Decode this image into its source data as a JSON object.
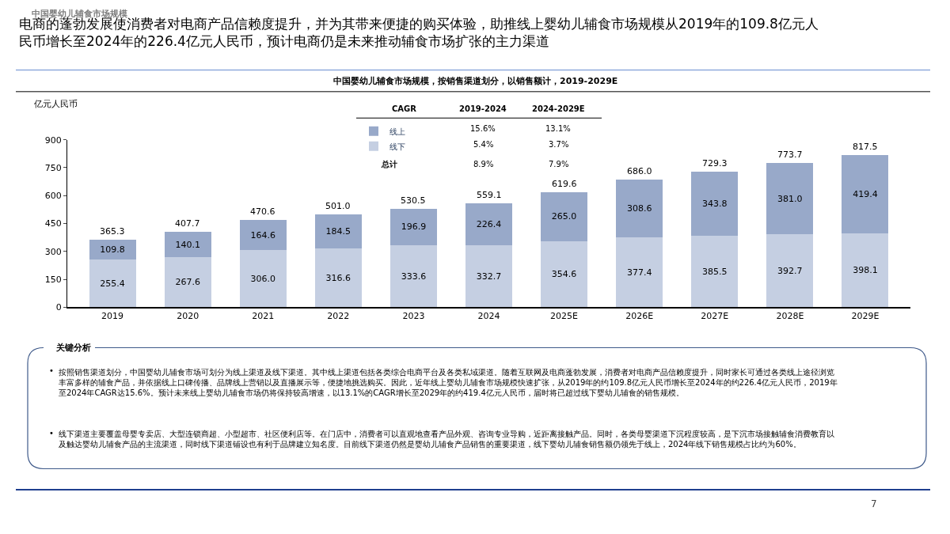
{
  "chart_data": {
    "type": "bar",
    "stacked": true,
    "title": "电商的蓬勃发展使消费者对电商产品信赖度提升，并为其带来便捷的购买体验，助推线上婴幼儿辅食市场规模从2019年的109.8亿元人民币增长至2024年的226.4亿元人民币，预计电商仍是未来推动辅食市场扩张的主力渠道",
    "subtitle": "中国婴幼儿辅食市场规模，按销售渠道划分，以销售额计，2019-2029E",
    "ylabel": "亿元人民币",
    "categories": [
      "2019",
      "2020",
      "2021",
      "2022",
      "2023",
      "2024",
      "2025E",
      "2026E",
      "2027E",
      "2028E",
      "2029E"
    ],
    "series": [
      {
        "name": "线下",
        "color": "#c5cfe2",
        "values": [
          255.4,
          267.6,
          306.0,
          316.6,
          333.6,
          332.7,
          354.6,
          377.4,
          385.5,
          392.7,
          398.1
        ],
        "value_labels": [
          "255.4",
          "267.6",
          "306.0",
          "316.6",
          "333.6",
          "332.7",
          "354.6",
          "377.4",
          "385.5",
          "392.7",
          "398.1"
        ]
      },
      {
        "name": "线上",
        "color": "#98a9c9",
        "values": [
          109.8,
          140.1,
          164.6,
          184.5,
          196.9,
          226.4,
          265.0,
          308.6,
          343.8,
          381.0,
          419.4
        ],
        "value_labels": [
          "109.8",
          "140.1",
          "164.6",
          "184.5",
          "196.9",
          "226.4",
          "265.0",
          "308.6",
          "343.8",
          "381.0",
          "419.4"
        ]
      }
    ],
    "totals": [
      "365.3",
      "407.7",
      "470.6",
      "501.0",
      "530.5",
      "559.1",
      "619.6",
      "686.0",
      "729.3",
      "773.7",
      "817.5"
    ],
    "ylim": [
      0,
      900
    ],
    "yticks": [
      0,
      150,
      300,
      450,
      600,
      750,
      900
    ],
    "legend": "top",
    "annotations": [
      "中国婴幼儿辅食市场规模",
      "CAGR",
      "2019-2024",
      "2024-2029E",
      "15.6%",
      "13.1%",
      "5.4%",
      "3.7%",
      "总计",
      "8.9%",
      "7.9%",
      "关键分析",
      "按照销售渠道划分，中国婴幼儿辅食市场可划分为线上渠道及线下渠道。其中线上渠道包括各类综合电商平台及各类私域渠道。随着互联网及电商蓬勃发展，消费者对电商产品信赖度提升，同时家长可通过各类线上途径浏览丰富多样的辅食产品，并依据线上口碑传播、品牌线上营销以及直播展示等，便捷地挑选购买。因此，近年线上婴幼儿辅食市场规模快速扩张，从2019年的约109.8亿元人民币增长至2024年的约226.4亿元人民币，2019年至2024年CAGR达15.6%。预计未来线上婴幼儿辅食市场仍将保持较高增速，以13.1%的CAGR增长至2029年的约419.4亿元人民币，届时将已超过线下婴幼儿辅食的销售规模。",
      "线下渠道主要覆盖母婴专卖店、大型连锁商超、小型超市、社区便利店等。在门店中，消费者可以直观地查看产品外观、咨询专业导购，近距离接触产品。同时，各类母婴渠道下沉程度较高，是下沉市场接触辅食消费教育以及触达婴幼儿辅食产品的主流渠道，同时线下渠道铺设也有利于品牌建立知名度。目前线下渠道仍然是婴幼儿辅食产品销售的重要渠道，线下婴幼儿辅食销售额仍领先于线上，2024年线下销售规模占比约为60%。",
      "7",
      "•",
      "•"
    ]
  }
}
